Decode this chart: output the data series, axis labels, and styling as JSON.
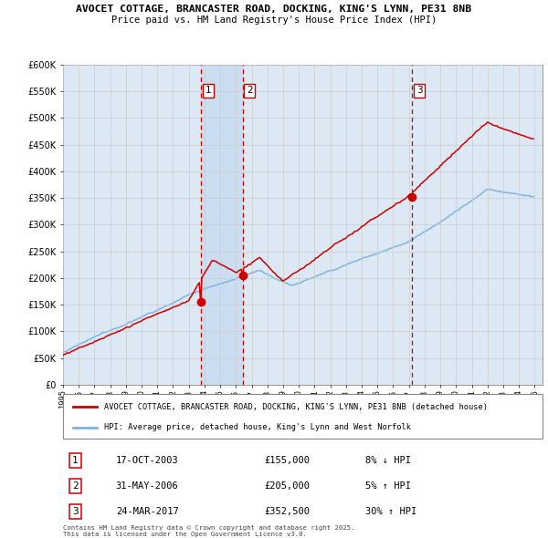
{
  "title_line1": "AVOCET COTTAGE, BRANCASTER ROAD, DOCKING, KING'S LYNN, PE31 8NB",
  "title_line2": "Price paid vs. HM Land Registry's House Price Index (HPI)",
  "legend_property": "AVOCET COTTAGE, BRANCASTER ROAD, DOCKING, KING'S LYNN, PE31 8NB (detached house)",
  "legend_hpi": "HPI: Average price, detached house, King's Lynn and West Norfolk",
  "transactions": [
    {
      "num": 1,
      "date": "17-OCT-2003",
      "price": 155000,
      "pct": "8%",
      "dir": "↓"
    },
    {
      "num": 2,
      "date": "31-MAY-2006",
      "price": 205000,
      "pct": "5%",
      "dir": "↑"
    },
    {
      "num": 3,
      "date": "24-MAR-2017",
      "price": 352500,
      "pct": "30%",
      "dir": "↑"
    }
  ],
  "footer": "Contains HM Land Registry data © Crown copyright and database right 2025.\nThis data is licensed under the Open Government Licence v3.0.",
  "ymin": 0,
  "ymax": 600000,
  "ytick_vals": [
    0,
    50000,
    100000,
    150000,
    200000,
    250000,
    300000,
    350000,
    400000,
    450000,
    500000,
    550000,
    600000
  ],
  "ytick_labels": [
    "£0",
    "£50K",
    "£100K",
    "£150K",
    "£200K",
    "£250K",
    "£300K",
    "£350K",
    "£400K",
    "£450K",
    "£500K",
    "£550K",
    "£600K"
  ],
  "xmin": 1995,
  "xmax": 2025.5,
  "property_color": "#cc0000",
  "hpi_color": "#7db4e0",
  "vline_color": "#cc0000",
  "dot_color": "#cc0000",
  "bg_color": "#dce9f5",
  "plot_bg": "#ffffff",
  "grid_color": "#cccccc",
  "label_border": "#cc0000",
  "span_color": "#c5d9ef",
  "t1_year": 2003.8,
  "t2_year": 2006.42,
  "t3_year": 2017.22,
  "t1_price": 155000,
  "t2_price": 205000,
  "t3_price": 352500
}
